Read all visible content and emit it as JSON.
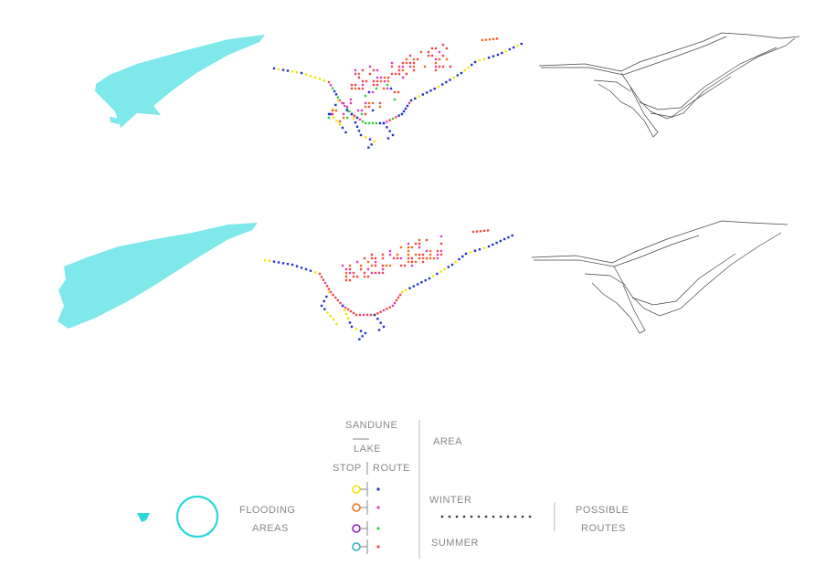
{
  "legend": {
    "sandune": "SANDUNE",
    "lake": "LAKE",
    "stop": "STOP",
    "route": "ROUTE",
    "area": "AREA",
    "flooding": [
      "FLOODING",
      "AREAS"
    ],
    "winter": "WINTER",
    "summer": "SUMMER",
    "possible_routes": [
      "POSSIBLE",
      "ROUTES"
    ]
  }
}
